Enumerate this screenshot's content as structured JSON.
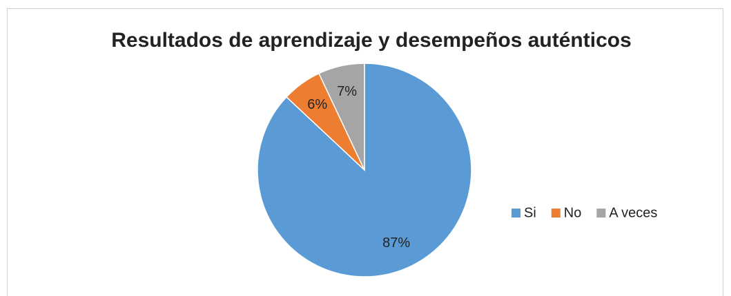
{
  "chart_data": {
    "type": "pie",
    "title": "Resultados de aprendizaje y desempeños auténticos",
    "categories": [
      "Si",
      "No",
      "A veces"
    ],
    "values": [
      87,
      6,
      7
    ],
    "value_labels": [
      "87%",
      "6%",
      "7%"
    ],
    "colors": [
      "#5b9bd5",
      "#ed7d31",
      "#a5a5a5"
    ],
    "legend": "right"
  }
}
